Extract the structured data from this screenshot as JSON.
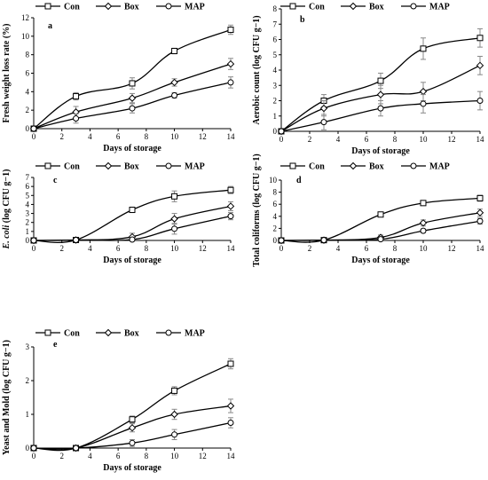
{
  "chart_data": [
    {
      "type": "line",
      "panel": "a",
      "legend": [
        "Con",
        "Box",
        "MAP"
      ],
      "xlabel": "Days of storage",
      "ylabel": "Fresh weight loss rate (%)",
      "xlim": [
        0,
        14
      ],
      "xticks": [
        0,
        2,
        4,
        6,
        8,
        10,
        12,
        14
      ],
      "ylim": [
        0,
        12
      ],
      "yticks": [
        0,
        2,
        4,
        6,
        8,
        10,
        12
      ],
      "x": [
        0,
        3,
        7,
        10,
        14
      ],
      "series": [
        {
          "name": "Con",
          "marker": "square",
          "values": [
            0,
            3.5,
            4.9,
            8.4,
            10.7
          ],
          "errors": [
            0,
            0.4,
            0.6,
            0.3,
            0.5
          ]
        },
        {
          "name": "Box",
          "marker": "diamond",
          "values": [
            0,
            1.8,
            3.3,
            5.0,
            7.0
          ],
          "errors": [
            0,
            0.6,
            0.5,
            0.4,
            0.6
          ]
        },
        {
          "name": "MAP",
          "marker": "circle",
          "values": [
            0,
            1.1,
            2.2,
            3.6,
            5.0
          ],
          "errors": [
            0,
            0.5,
            0.5,
            0.3,
            0.6
          ]
        }
      ]
    },
    {
      "type": "line",
      "panel": "b",
      "legend": [
        "Con",
        "Box",
        "MAP"
      ],
      "xlabel": "Days of storage",
      "ylabel": "Aerobic count (log CFU g−1)",
      "xlim": [
        0,
        14
      ],
      "xticks": [
        0,
        2,
        4,
        6,
        8,
        10,
        12,
        14
      ],
      "ylim": [
        0,
        8
      ],
      "yticks": [
        0,
        1,
        2,
        3,
        4,
        5,
        6,
        7,
        8
      ],
      "x": [
        0,
        3,
        7,
        10,
        14
      ],
      "series": [
        {
          "name": "Con",
          "marker": "square",
          "values": [
            0,
            2.0,
            3.3,
            5.4,
            6.1
          ],
          "errors": [
            0,
            0.4,
            0.5,
            0.7,
            0.6
          ]
        },
        {
          "name": "Box",
          "marker": "diamond",
          "values": [
            0,
            1.5,
            2.4,
            2.6,
            4.3
          ],
          "errors": [
            0,
            0.5,
            0.6,
            0.6,
            0.6
          ]
        },
        {
          "name": "MAP",
          "marker": "circle",
          "values": [
            0,
            0.6,
            1.5,
            1.8,
            2.0
          ],
          "errors": [
            0,
            0.5,
            0.5,
            0.6,
            0.6
          ]
        }
      ]
    },
    {
      "type": "line",
      "panel": "c",
      "legend": [
        "Con",
        "Box",
        "MAP"
      ],
      "xlabel": "Days of storage",
      "ylabel": "E. coli (log CFU g−1)",
      "xlim": [
        0,
        14
      ],
      "xticks": [
        0,
        2,
        4,
        6,
        8,
        10,
        12,
        14
      ],
      "ylim": [
        0,
        7
      ],
      "yticks": [
        0,
        1,
        2,
        3,
        4,
        5,
        6,
        7
      ],
      "x": [
        0,
        3,
        7,
        10,
        14
      ],
      "series": [
        {
          "name": "Con",
          "marker": "square",
          "values": [
            0,
            0.05,
            3.4,
            4.9,
            5.6
          ],
          "errors": [
            0,
            0.2,
            0.3,
            0.6,
            0.4
          ]
        },
        {
          "name": "Box",
          "marker": "diamond",
          "values": [
            0,
            0.05,
            0.4,
            2.4,
            3.8
          ],
          "errors": [
            0,
            0.1,
            0.4,
            0.6,
            0.5
          ]
        },
        {
          "name": "MAP",
          "marker": "circle",
          "values": [
            0,
            0.05,
            0.1,
            1.3,
            2.7
          ],
          "errors": [
            0,
            0.1,
            0.2,
            0.6,
            0.4
          ]
        }
      ]
    },
    {
      "type": "line",
      "panel": "d",
      "legend": [
        "Con",
        "Box",
        "MAP"
      ],
      "xlabel": "Days of storage",
      "ylabel": "Total coliforms (log CFU g−1)",
      "xlim": [
        0,
        14
      ],
      "xticks": [
        0,
        2,
        4,
        6,
        8,
        10,
        12,
        14
      ],
      "ylim": [
        0,
        10
      ],
      "yticks": [
        0,
        2,
        4,
        6,
        8,
        10
      ],
      "x": [
        0,
        3,
        7,
        10,
        14
      ],
      "series": [
        {
          "name": "Con",
          "marker": "square",
          "values": [
            0,
            0.05,
            4.3,
            6.2,
            7.0
          ],
          "errors": [
            0,
            0.2,
            0.3,
            0.4,
            0.5
          ]
        },
        {
          "name": "Box",
          "marker": "diamond",
          "values": [
            0,
            0.05,
            0.5,
            2.9,
            4.6
          ],
          "errors": [
            0,
            0.2,
            0.4,
            0.5,
            0.6
          ]
        },
        {
          "name": "MAP",
          "marker": "circle",
          "values": [
            0,
            0.05,
            0.2,
            1.6,
            3.2
          ],
          "errors": [
            0,
            0.2,
            0.3,
            0.3,
            0.5
          ]
        }
      ]
    },
    {
      "type": "line",
      "panel": "e",
      "legend": [
        "Con",
        "Box",
        "MAP"
      ],
      "xlabel": "Days of storage",
      "ylabel": "Yeast and Mold (log CFU g−1)",
      "xlim": [
        0,
        14
      ],
      "xticks": [
        0,
        2,
        4,
        6,
        8,
        10,
        12,
        14
      ],
      "ylim": [
        0,
        3
      ],
      "yticks": [
        0,
        1,
        2,
        3
      ],
      "x": [
        0,
        3,
        7,
        10,
        14
      ],
      "series": [
        {
          "name": "Con",
          "marker": "square",
          "values": [
            0,
            0.0,
            0.85,
            1.7,
            2.5
          ],
          "errors": [
            0,
            0.02,
            0.1,
            0.12,
            0.15
          ]
        },
        {
          "name": "Box",
          "marker": "diamond",
          "values": [
            0,
            0.0,
            0.6,
            1.0,
            1.25
          ],
          "errors": [
            0,
            0.02,
            0.12,
            0.15,
            0.2
          ]
        },
        {
          "name": "MAP",
          "marker": "circle",
          "values": [
            0,
            0.0,
            0.15,
            0.4,
            0.75
          ],
          "errors": [
            0,
            0.02,
            0.1,
            0.15,
            0.15
          ]
        }
      ]
    }
  ]
}
